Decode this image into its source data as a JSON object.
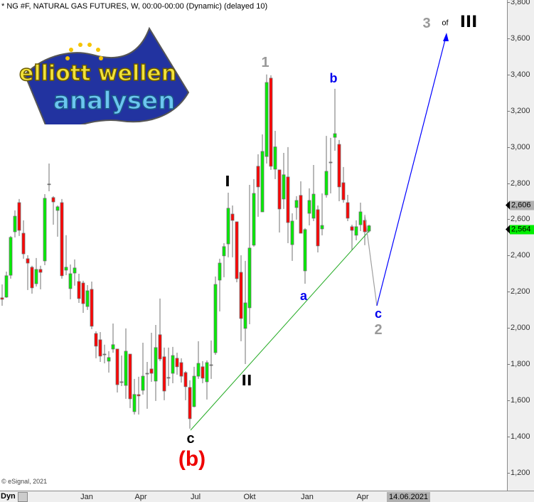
{
  "header": {
    "title": "* NG #F, NATURAL GAS FUTURES, W, 00:00-00:00 (Dynamic) (delayed 10)"
  },
  "copyright": "© eSignal, 2021",
  "logo": {
    "line1": "elliott wellen",
    "line2": "analysen"
  },
  "footer": {
    "mode": "Dyn",
    "date": "14.06.2021"
  },
  "colors": {
    "up": "#00ee00",
    "down": "#ff0000",
    "wick": "#707070",
    "trend": "#22aa22",
    "wave_up": "#0000ff",
    "wave_down": "#a0a0a0",
    "label_blue": "#0000ee",
    "label_gray": "#999999",
    "label_red": "#ee0000"
  },
  "price_tags": [
    {
      "value": "2,606",
      "color": "#b0b0b0"
    },
    {
      "value": "2,564",
      "color": "#00ee00"
    }
  ],
  "annotations": {
    "wave1": "1",
    "b": "b",
    "I": "I",
    "II": "II",
    "a": "a",
    "c_blue": "c",
    "wave2": "2",
    "c_black": "c",
    "b_paren": "(b)",
    "three": "3",
    "of": "of",
    "III": "III"
  },
  "chart_data": {
    "type": "candlestick",
    "title": "NG #F, NATURAL GAS FUTURES, W",
    "ylim": [
      1150,
      3800
    ],
    "yticks": [
      "3,800",
      "3,600",
      "3,400",
      "3,200",
      "3,000",
      "2,800",
      "2,600",
      "2,400",
      "2,200",
      "2,000",
      "1,800",
      "1,600",
      "1,400",
      "1,200"
    ],
    "xticks": [
      "Jan",
      "Apr",
      "Jul",
      "Okt",
      "Jan",
      "Apr"
    ],
    "grid": false,
    "candles_ohlc": [
      [
        2166,
        2240,
        2122,
        2158
      ],
      [
        2170,
        2311,
        2166,
        2288
      ],
      [
        2291,
        2508,
        2272,
        2500
      ],
      [
        2531,
        2649,
        2500,
        2617
      ],
      [
        2692,
        2712,
        2508,
        2539
      ],
      [
        2523,
        2594,
        2382,
        2409
      ],
      [
        2382,
        2401,
        2209,
        2358
      ],
      [
        2335,
        2343,
        2189,
        2221
      ],
      [
        2244,
        2386,
        2229,
        2323
      ],
      [
        2323,
        2343,
        2213,
        2307
      ],
      [
        2370,
        2739,
        2346,
        2716
      ],
      [
        2795,
        2908,
        2755,
        2795
      ],
      [
        2720,
        2728,
        2570,
        2696
      ],
      [
        2649,
        2676,
        2504,
        2669
      ],
      [
        2692,
        2712,
        2272,
        2288
      ],
      [
        2319,
        2512,
        2291,
        2335
      ],
      [
        2217,
        2350,
        2158,
        2299
      ],
      [
        2303,
        2378,
        2233,
        2331
      ],
      [
        2256,
        2299,
        2138,
        2162
      ],
      [
        2248,
        2260,
        2083,
        2134
      ],
      [
        2118,
        2236,
        2099,
        2205
      ],
      [
        2213,
        2256,
        1993,
        2009
      ],
      [
        1969,
        1981,
        1832,
        1899
      ],
      [
        1934,
        1977,
        1812,
        1844
      ],
      [
        1855,
        1907,
        1804,
        1855
      ],
      [
        1816,
        1871,
        1753,
        1836
      ],
      [
        1883,
        2024,
        1863,
        1907
      ],
      [
        1883,
        1883,
        1643,
        1686
      ],
      [
        1702,
        1847,
        1678,
        1702
      ],
      [
        1682,
        1997,
        1608,
        1871
      ],
      [
        1855,
        1855,
        1557,
        1608
      ],
      [
        1537,
        1718,
        1521,
        1632
      ],
      [
        1631,
        1730,
        1521,
        1624
      ],
      [
        1655,
        1918,
        1631,
        1733
      ],
      [
        1749,
        1812,
        1553,
        1749
      ],
      [
        1773,
        1973,
        1702,
        1749
      ],
      [
        1706,
        2016,
        1596,
        1891
      ],
      [
        1962,
        2162,
        1816,
        1828
      ],
      [
        1840,
        1891,
        1600,
        1651
      ],
      [
        1726,
        1891,
        1679,
        1726
      ],
      [
        1749,
        1895,
        1694,
        1847
      ],
      [
        1832,
        1863,
        1741,
        1785
      ],
      [
        1808,
        1832,
        1698,
        1733
      ],
      [
        1753,
        1761,
        1600,
        1675
      ],
      [
        1671,
        1710,
        1443,
        1498
      ],
      [
        1565,
        1785,
        1561,
        1733
      ],
      [
        1733,
        1926,
        1718,
        1804
      ],
      [
        1785,
        1816,
        1694,
        1722
      ],
      [
        1702,
        1820,
        1604,
        1808
      ],
      [
        1796,
        1930,
        1718,
        1796
      ],
      [
        1863,
        2284,
        1851,
        2240
      ],
      [
        2264,
        2382,
        2091,
        2358
      ],
      [
        2398,
        2468,
        2280,
        2449
      ],
      [
        2464,
        2747,
        2390,
        2661
      ],
      [
        2629,
        2676,
        2390,
        2594
      ],
      [
        2586,
        2586,
        2252,
        2272
      ],
      [
        2307,
        2401,
        1926,
        2052
      ],
      [
        1997,
        2370,
        1800,
        2138
      ],
      [
        2111,
        2790,
        2020,
        2441
      ],
      [
        2457,
        2822,
        2449,
        2743
      ],
      [
        2893,
        2959,
        2614,
        2779
      ],
      [
        2641,
        3069,
        2641,
        2975
      ],
      [
        2947,
        3400,
        2908,
        3356
      ],
      [
        3380,
        3396,
        2873,
        2893
      ],
      [
        2877,
        3089,
        2822,
        3000
      ],
      [
        2873,
        2873,
        2527,
        2657
      ],
      [
        2712,
        2967,
        2657,
        2846
      ],
      [
        2834,
        2999,
        2468,
        2582
      ],
      [
        2460,
        2633,
        2370,
        2590
      ],
      [
        2665,
        2728,
        2598,
        2704
      ],
      [
        2732,
        2810,
        2523,
        2523
      ],
      [
        2315,
        2551,
        2244,
        2543
      ],
      [
        2633,
        2771,
        2566,
        2704
      ],
      [
        2606,
        2900,
        2590,
        2739
      ],
      [
        2653,
        2676,
        2417,
        2453
      ],
      [
        2547,
        2743,
        2511,
        2566
      ],
      [
        2735,
        3061,
        2720,
        2865
      ],
      [
        2916,
        3050,
        2743,
        2916
      ],
      [
        3053,
        3321,
        2979,
        3073
      ],
      [
        3014,
        3038,
        2700,
        2779
      ],
      [
        2802,
        2889,
        2692,
        2708
      ],
      [
        2692,
        2735,
        2590,
        2606
      ],
      [
        2559,
        2570,
        2429,
        2539
      ],
      [
        2512,
        2594,
        2484,
        2559
      ],
      [
        2570,
        2692,
        2535,
        2641
      ],
      [
        2594,
        2618,
        2457,
        2531
      ],
      [
        2535,
        2570,
        2527,
        2564
      ]
    ]
  }
}
